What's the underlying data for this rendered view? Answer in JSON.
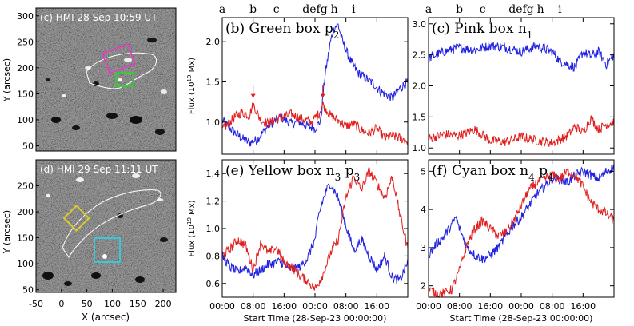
{
  "figure": {
    "time_letters": [
      "a",
      "b",
      "c",
      "defg",
      "h",
      "i"
    ],
    "magnetograms": [
      {
        "label": "(c) HMI 28 Sep 10:59 UT",
        "ylabel": "Y (arcsec)",
        "yticks": [
          50,
          100,
          150,
          200,
          250,
          300
        ],
        "xticks": [
          -50,
          0,
          50,
          100,
          150,
          200
        ],
        "boxes": [
          {
            "name": "pink",
            "color": "#e040c0"
          },
          {
            "name": "green",
            "color": "#30d030"
          }
        ]
      },
      {
        "label": "(d) HMI 29 Sep 11:11 UT",
        "ylabel": "Y (arcsec)",
        "xlabel": "X (arcsec)",
        "yticks": [
          50,
          100,
          150,
          200,
          250
        ],
        "xticks": [
          -50,
          0,
          50,
          100,
          150,
          200
        ],
        "boxes": [
          {
            "name": "yellow",
            "color": "#e0d020"
          },
          {
            "name": "cyan",
            "color": "#30d0e0"
          }
        ]
      }
    ],
    "colors": {
      "blue": "#2020e0",
      "red": "#e02020"
    },
    "time_ticks": [
      "00:00",
      "08:00",
      "16:00",
      "00:00",
      "08:00",
      "16:00"
    ],
    "time_xlabel": "Start Time (28-Sep-23 00:00:00)"
  },
  "chart_data": [
    {
      "type": "line",
      "title": "(b) Green box p",
      "title_sub": "2",
      "ylabel": "Flux (10",
      "ylabel_sup": "19",
      "ylabel_tail": " Mx)",
      "ylim": [
        0.6,
        2.3
      ],
      "yticks": [
        1.0,
        1.5,
        2.0
      ],
      "xrange_hours": [
        0,
        48
      ],
      "arrows_at_hours": [
        8,
        26
      ],
      "series": [
        {
          "name": "p2",
          "color": "#2020e0",
          "t": [
            0,
            3,
            5,
            7,
            9,
            12,
            15,
            18,
            20,
            22,
            24,
            25.5,
            26.5,
            28,
            29,
            30,
            31,
            33,
            35,
            37,
            39,
            41,
            44,
            46,
            48
          ],
          "v": [
            1.02,
            0.88,
            0.8,
            0.74,
            0.78,
            0.96,
            1.06,
            0.98,
            1.0,
            0.95,
            0.92,
            1.02,
            1.55,
            2.0,
            2.18,
            2.21,
            2.02,
            1.78,
            1.62,
            1.55,
            1.48,
            1.38,
            1.3,
            1.42,
            1.5
          ]
        },
        {
          "name": "n2",
          "color": "#e02020",
          "t": [
            0,
            3,
            5,
            7,
            8,
            10,
            12,
            15,
            18,
            20,
            23,
            25,
            26,
            28,
            30,
            32,
            34,
            36,
            38,
            40,
            42,
            44,
            46,
            48
          ],
          "v": [
            0.9,
            1.05,
            1.12,
            1.08,
            1.22,
            1.02,
            0.98,
            1.05,
            1.1,
            1.05,
            1.0,
            1.1,
            1.22,
            1.08,
            1.02,
            0.95,
            0.98,
            0.9,
            0.86,
            0.92,
            0.8,
            0.83,
            0.8,
            0.76
          ]
        }
      ]
    },
    {
      "type": "line",
      "title": "(c) Pink box n",
      "title_sub": "1",
      "ylabel": "",
      "ylim": [
        0.9,
        3.1
      ],
      "yticks": [
        1.0,
        1.5,
        2.0,
        2.5,
        3.0
      ],
      "xrange_hours": [
        0,
        48
      ],
      "series": [
        {
          "name": "blue",
          "color": "#2020e0",
          "t": [
            0,
            4,
            8,
            12,
            16,
            20,
            24,
            28,
            32,
            34,
            36,
            38,
            40,
            42,
            44,
            46,
            48
          ],
          "v": [
            2.45,
            2.55,
            2.62,
            2.58,
            2.65,
            2.62,
            2.55,
            2.65,
            2.55,
            2.4,
            2.35,
            2.3,
            2.55,
            2.48,
            2.55,
            2.35,
            2.5
          ]
        },
        {
          "name": "red",
          "color": "#e02020",
          "t": [
            0,
            4,
            8,
            12,
            16,
            20,
            24,
            28,
            32,
            36,
            38,
            40,
            42,
            44,
            46,
            48
          ],
          "v": [
            1.15,
            1.22,
            1.2,
            1.3,
            1.12,
            1.1,
            1.18,
            1.12,
            1.08,
            1.2,
            1.35,
            1.25,
            1.48,
            1.3,
            1.38,
            1.42
          ]
        }
      ]
    },
    {
      "type": "line",
      "title": "(e) Yellow box n",
      "title_sub": "3",
      "title2": " p",
      "title2_sub": "3",
      "ylabel": "Flux (10",
      "ylabel_sup": "19",
      "ylabel_tail": " Mx)",
      "ylim": [
        0.5,
        1.5
      ],
      "yticks": [
        0.6,
        0.8,
        1.0,
        1.2,
        1.4
      ],
      "xrange_hours": [
        0,
        48
      ],
      "series": [
        {
          "name": "blue",
          "color": "#2020e0",
          "t": [
            0,
            2,
            4,
            6,
            8,
            10,
            12,
            15,
            18,
            20,
            22,
            23,
            24,
            25,
            26,
            27,
            28,
            30,
            32,
            34,
            36,
            38,
            40,
            42,
            44,
            46,
            48
          ],
          "v": [
            0.8,
            0.72,
            0.68,
            0.72,
            0.66,
            0.7,
            0.74,
            0.76,
            0.7,
            0.72,
            0.78,
            0.85,
            0.92,
            1.1,
            1.2,
            1.28,
            1.33,
            1.22,
            1.02,
            0.84,
            0.92,
            0.8,
            0.7,
            0.8,
            0.64,
            0.62,
            0.76
          ]
        },
        {
          "name": "red",
          "color": "#e02020",
          "t": [
            0,
            2,
            4,
            6,
            8,
            10,
            12,
            14,
            16,
            18,
            20,
            22,
            24,
            26,
            28,
            30,
            32,
            34,
            36,
            38,
            40,
            42,
            44,
            46,
            48
          ],
          "v": [
            0.8,
            0.85,
            0.92,
            0.88,
            0.7,
            0.9,
            0.82,
            0.86,
            0.75,
            0.72,
            0.66,
            0.62,
            0.56,
            0.66,
            0.82,
            0.92,
            1.22,
            1.38,
            1.28,
            1.42,
            1.33,
            1.22,
            1.38,
            1.1,
            0.85
          ]
        }
      ]
    },
    {
      "type": "line",
      "title": "(f) Cyan box n",
      "title_sub": "4",
      "title2": " p",
      "title2_sub": "4",
      "ylabel": "",
      "ylim": [
        1.7,
        5.3
      ],
      "yticks": [
        2,
        3,
        4,
        5
      ],
      "xrange_hours": [
        0,
        48
      ],
      "series": [
        {
          "name": "blue",
          "color": "#2020e0",
          "t": [
            0,
            2,
            4,
            6,
            7,
            8,
            10,
            12,
            14,
            16,
            18,
            20,
            22,
            24,
            26,
            28,
            30,
            32,
            34,
            36,
            38,
            40,
            42,
            44,
            46,
            48
          ],
          "v": [
            2.8,
            3.1,
            3.3,
            3.6,
            3.8,
            3.5,
            3.0,
            2.8,
            2.7,
            2.8,
            3.0,
            3.3,
            3.6,
            3.8,
            4.1,
            4.4,
            4.6,
            4.8,
            4.8,
            4.7,
            4.9,
            5.0,
            4.9,
            4.8,
            5.0,
            5.1
          ]
        },
        {
          "name": "red",
          "color": "#e02020",
          "t": [
            0,
            2,
            4,
            6,
            8,
            10,
            12,
            14,
            16,
            18,
            20,
            22,
            24,
            26,
            28,
            30,
            32,
            34,
            36,
            38,
            40,
            42,
            44,
            46,
            48
          ],
          "v": [
            1.9,
            1.8,
            1.8,
            1.9,
            2.4,
            3.1,
            3.5,
            3.7,
            3.5,
            3.3,
            3.4,
            3.7,
            4.1,
            4.5,
            4.7,
            4.8,
            4.9,
            4.8,
            5.0,
            4.9,
            4.6,
            4.2,
            4.0,
            3.9,
            3.7
          ]
        }
      ]
    }
  ]
}
